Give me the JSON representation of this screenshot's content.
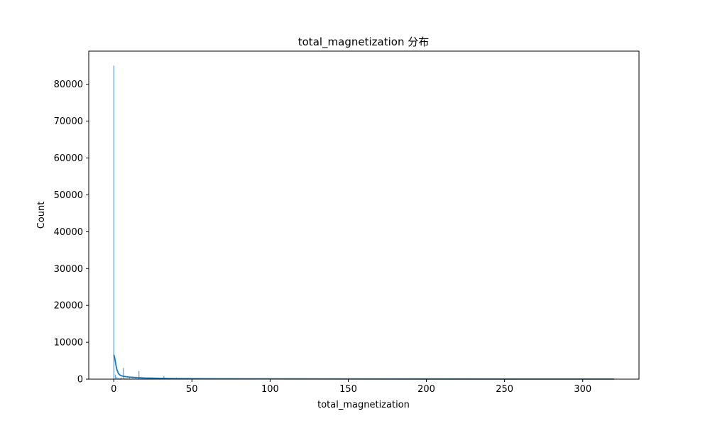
{
  "chart_data": {
    "type": "bar",
    "title": "total_magnetization 分布",
    "xlabel": "total_magnetization",
    "ylabel": "Count",
    "xlim": [
      -16,
      336
    ],
    "ylim": [
      0,
      89000
    ],
    "xticks": [
      0,
      50,
      100,
      150,
      200,
      250,
      300
    ],
    "yticks": [
      0,
      10000,
      20000,
      30000,
      40000,
      50000,
      60000,
      70000,
      80000
    ],
    "grid": false,
    "legend": "none",
    "bar_color": "#1f77b4",
    "kde_color": "#1f77b4",
    "bins": [
      {
        "x": 0.0,
        "count": 85000
      },
      {
        "x": 1.0,
        "count": 1200
      },
      {
        "x": 2.0,
        "count": 500
      },
      {
        "x": 3.0,
        "count": 300
      },
      {
        "x": 4.0,
        "count": 250
      },
      {
        "x": 5.0,
        "count": 350
      },
      {
        "x": 6.0,
        "count": 3000
      },
      {
        "x": 7.0,
        "count": 250
      },
      {
        "x": 8.0,
        "count": 200
      },
      {
        "x": 9.0,
        "count": 150
      },
      {
        "x": 10.0,
        "count": 300
      },
      {
        "x": 12.0,
        "count": 180
      },
      {
        "x": 14.0,
        "count": 150
      },
      {
        "x": 16.0,
        "count": 2200
      },
      {
        "x": 18.0,
        "count": 150
      },
      {
        "x": 20.0,
        "count": 120
      },
      {
        "x": 24.0,
        "count": 120
      },
      {
        "x": 28.0,
        "count": 100
      },
      {
        "x": 32.0,
        "count": 700
      },
      {
        "x": 36.0,
        "count": 80
      },
      {
        "x": 40.0,
        "count": 400
      },
      {
        "x": 48.0,
        "count": 300
      },
      {
        "x": 56.0,
        "count": 60
      },
      {
        "x": 64.0,
        "count": 80
      },
      {
        "x": 80.0,
        "count": 40
      },
      {
        "x": 100.0,
        "count": 40
      },
      {
        "x": 128.0,
        "count": 30
      },
      {
        "x": 160.0,
        "count": 20
      },
      {
        "x": 200.0,
        "count": 20
      },
      {
        "x": 256.0,
        "count": 15
      },
      {
        "x": 320.0,
        "count": 15
      }
    ],
    "kde": {
      "x": [
        0,
        0.5,
        1,
        1.5,
        2,
        3,
        4,
        5,
        6,
        8,
        10,
        15,
        20,
        30,
        40,
        60,
        100,
        150,
        200,
        250,
        300,
        320
      ],
      "y": [
        6600,
        6000,
        4800,
        3600,
        2600,
        1500,
        1100,
        900,
        800,
        650,
        550,
        400,
        300,
        200,
        150,
        100,
        70,
        50,
        40,
        30,
        25,
        20
      ]
    }
  }
}
